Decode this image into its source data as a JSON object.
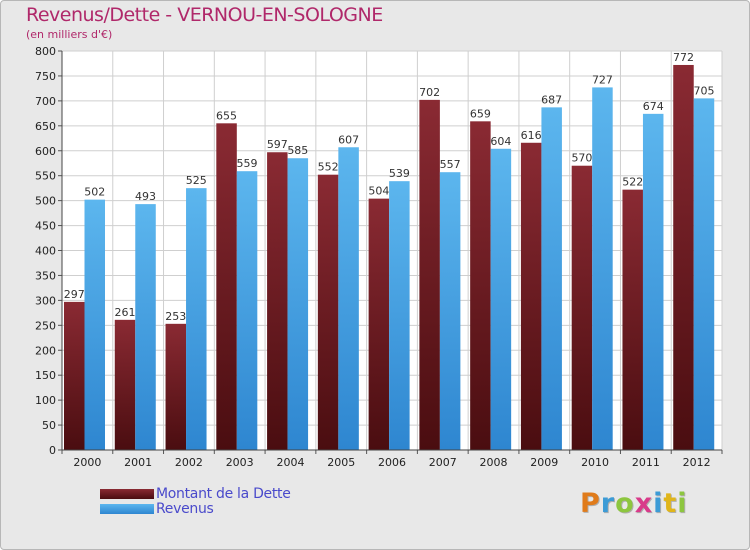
{
  "chart_data": {
    "type": "bar",
    "title": "Revenus/Dette - VERNOU-EN-SOLOGNE",
    "subtitle": "(en milliers d'€)",
    "categories": [
      "2000",
      "2001",
      "2002",
      "2003",
      "2004",
      "2005",
      "2006",
      "2007",
      "2008",
      "2009",
      "2010",
      "2011",
      "2012"
    ],
    "series": [
      {
        "name": "Montant de la Dette",
        "color": "#7b1f25",
        "values": [
          297,
          261,
          253,
          655,
          597,
          552,
          504,
          702,
          659,
          616,
          570,
          522,
          772
        ]
      },
      {
        "name": "Revenus",
        "color": "#4aa6e8",
        "values": [
          502,
          493,
          525,
          559,
          585,
          607,
          539,
          557,
          604,
          687,
          727,
          674,
          705
        ]
      }
    ],
    "ylim": [
      0,
      800
    ],
    "ytick_step": 50,
    "grid": true,
    "legend": "bottom-left"
  },
  "legend": {
    "items": [
      {
        "label": "Montant de la Dette",
        "color": "#7b1f25"
      },
      {
        "label": "Revenus",
        "color": "#4aa6e8"
      }
    ]
  },
  "logo": {
    "letters": [
      "P",
      "r",
      "o",
      "x",
      "i",
      "t",
      "i"
    ],
    "colors": [
      "#e07b1a",
      "#3c9bd6",
      "#8dc63f",
      "#d93a8a",
      "#3c9bd6",
      "#e0b51a",
      "#8dc63f"
    ]
  }
}
